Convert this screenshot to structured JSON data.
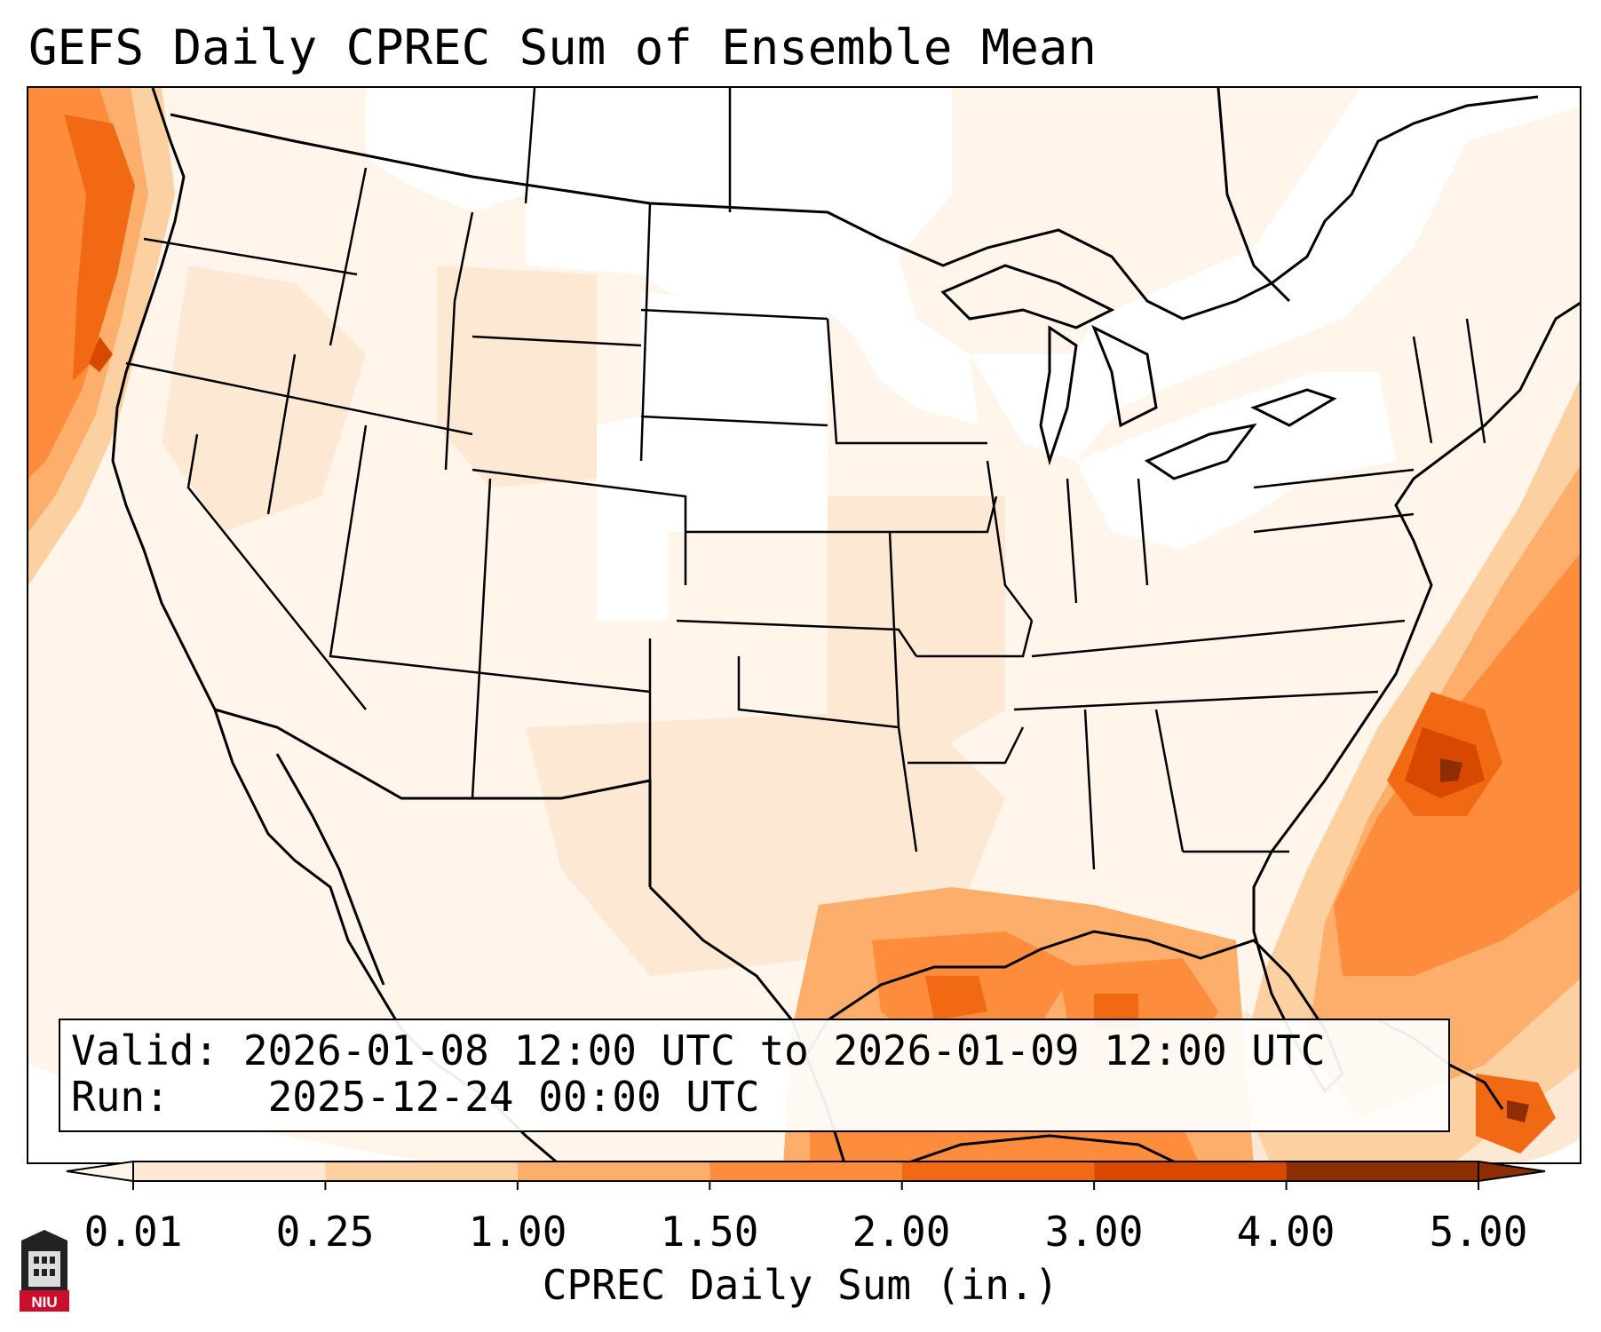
{
  "title": "GEFS Daily CPREC Sum of Ensemble Mean",
  "info": {
    "valid_label": "Valid:",
    "valid_value": "2026-01-08 12:00 UTC to 2026-01-09 12:00 UTC",
    "run_label": "Run:",
    "run_value": "2025-12-24 00:00 UTC"
  },
  "colorbar": {
    "label": "CPREC Daily Sum (in.)",
    "ticks": [
      "0.01",
      "0.25",
      "1.00",
      "1.50",
      "2.00",
      "3.00",
      "4.00",
      "5.00"
    ],
    "colors": [
      "#fff5eb",
      "#fde8d4",
      "#fdd0a2",
      "#fdae6b",
      "#fd8d3c",
      "#f16913",
      "#d94801",
      "#8c2d04"
    ],
    "extend": "both"
  },
  "logo": {
    "text": "NIU"
  },
  "colors": {
    "border": "#000000",
    "ocean_land_fill": "#fff5eb"
  }
}
